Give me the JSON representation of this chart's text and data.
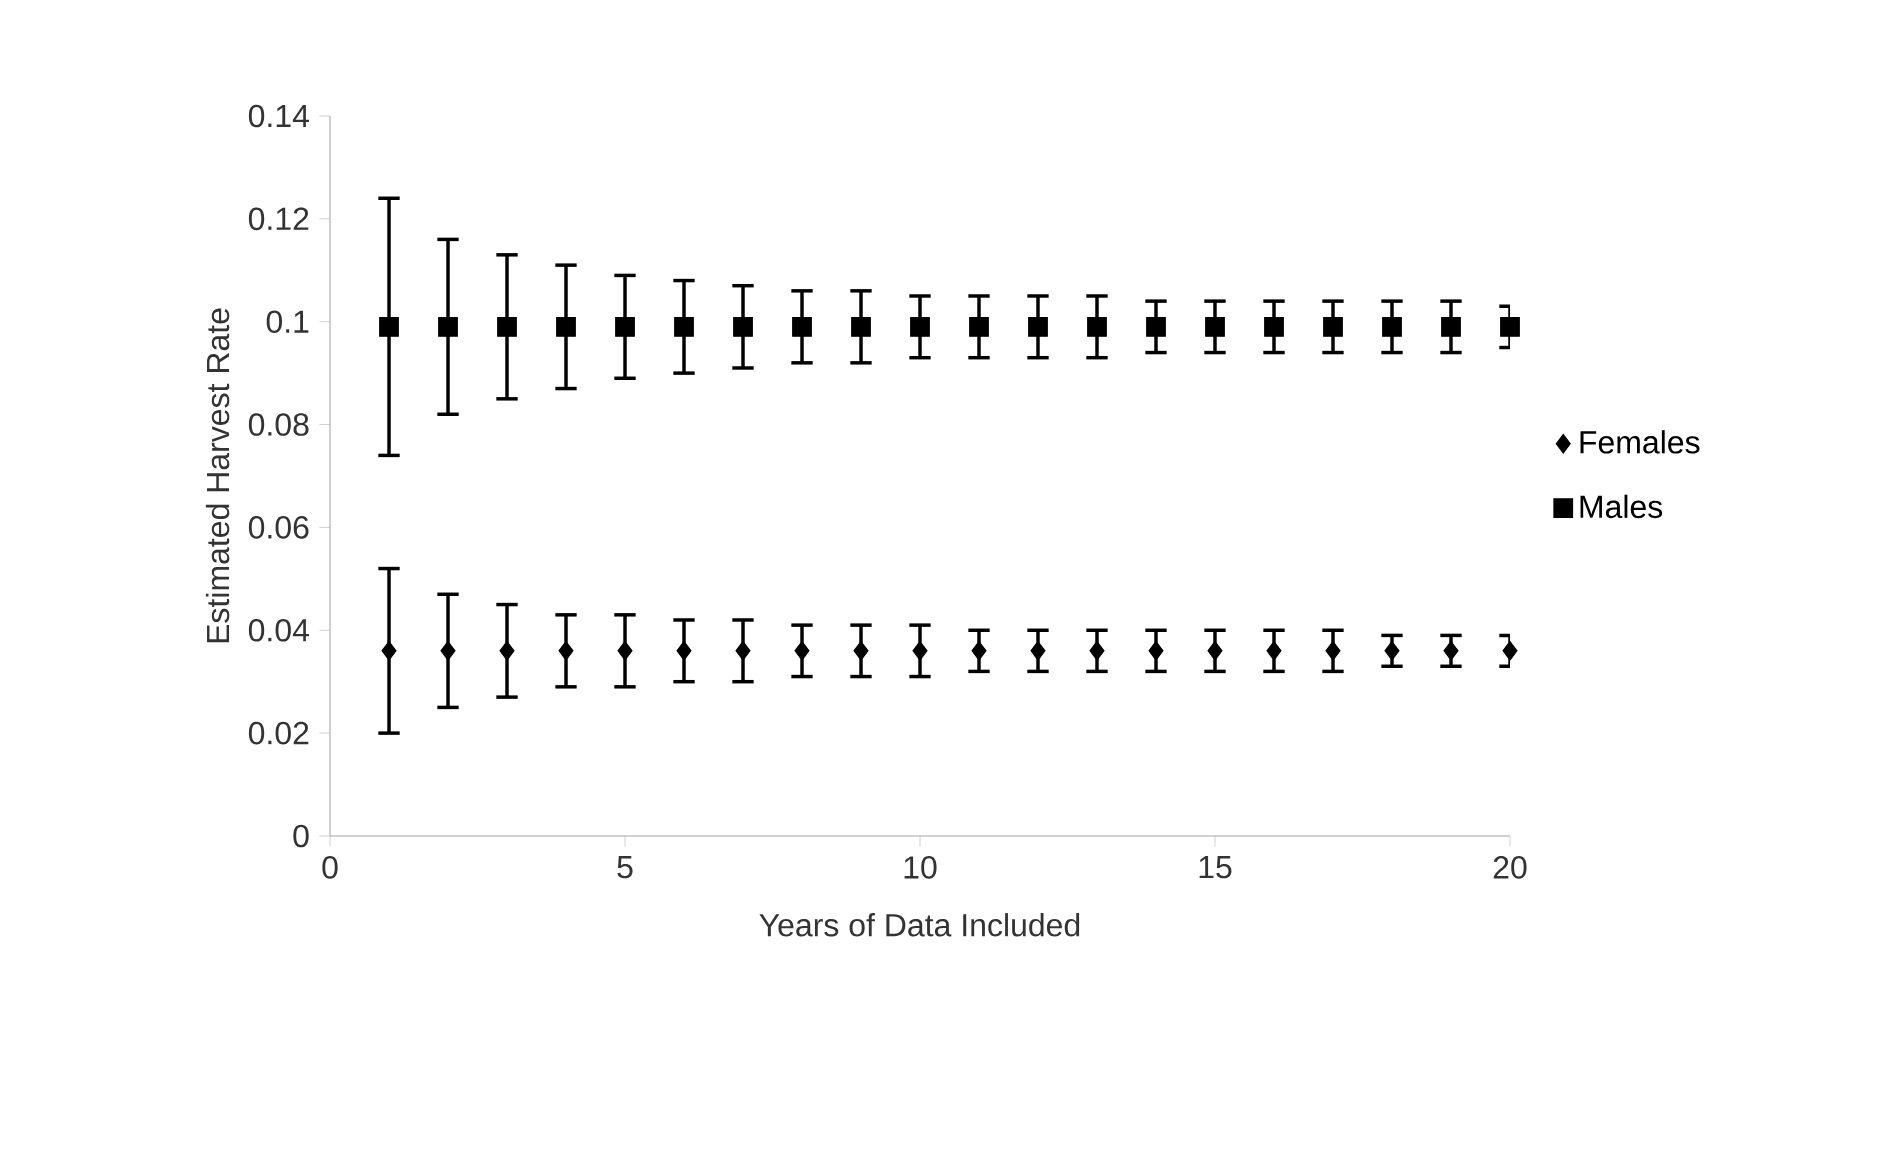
{
  "chart_data": {
    "type": "scatter",
    "xlabel": "Years of Data Included",
    "ylabel": "Estimated Harvest Rate",
    "xlim": [
      0,
      20
    ],
    "xticks": [
      0,
      5,
      10,
      15,
      20
    ],
    "ylim": [
      0,
      0.14
    ],
    "yticks": [
      0,
      0.02,
      0.04,
      0.06,
      0.08,
      {
        "value": 0.1,
        "label": "0.1"
      },
      0.12,
      0.14
    ],
    "grid": false,
    "legend": "right",
    "x": [
      1,
      2,
      3,
      4,
      5,
      6,
      7,
      8,
      9,
      10,
      11,
      12,
      13,
      14,
      15,
      16,
      17,
      18,
      19,
      20
    ],
    "series": [
      {
        "name": "Females",
        "color": "#000000",
        "marker": "diamond",
        "values": [
          0.036,
          0.036,
          0.036,
          0.036,
          0.036,
          0.036,
          0.036,
          0.036,
          0.036,
          0.036,
          0.036,
          0.036,
          0.036,
          0.036,
          0.036,
          0.036,
          0.036,
          0.036,
          0.036,
          0.036
        ],
        "errors": [
          0.016,
          0.011,
          0.009,
          0.007,
          0.007,
          0.006,
          0.006,
          0.005,
          0.005,
          0.005,
          0.004,
          0.004,
          0.004,
          0.004,
          0.004,
          0.004,
          0.004,
          0.003,
          0.003,
          0.003
        ]
      },
      {
        "name": "Males",
        "color": "#000000",
        "marker": "square",
        "values": [
          0.099,
          0.099,
          0.099,
          0.099,
          0.099,
          0.099,
          0.099,
          0.099,
          0.099,
          0.099,
          0.099,
          0.099,
          0.099,
          0.099,
          0.099,
          0.099,
          0.099,
          0.099,
          0.099,
          0.099
        ],
        "errors": [
          0.025,
          0.017,
          0.014,
          0.012,
          0.01,
          0.009,
          0.008,
          0.007,
          0.007,
          0.006,
          0.006,
          0.006,
          0.006,
          0.005,
          0.005,
          0.005,
          0.005,
          0.005,
          0.005,
          0.004
        ]
      }
    ]
  }
}
